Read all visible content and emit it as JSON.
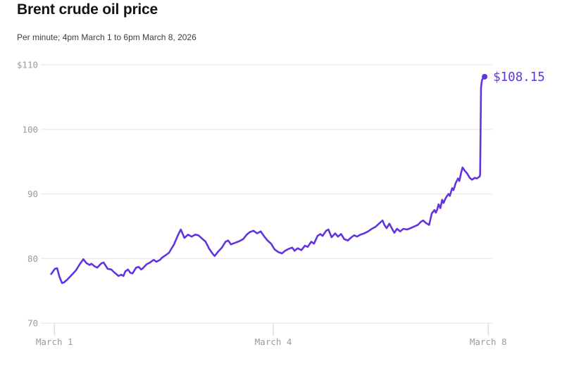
{
  "header": {
    "title": "Brent crude oil price",
    "subtitle": "Per minute; 4pm March 1 to 6pm March 8, 2026"
  },
  "colors": {
    "line": "#6333e0",
    "grid": "#e6e6e6",
    "tick": "#d0d0d0",
    "axis_text": "#9b9b9b",
    "title_text": "#141414",
    "subtitle_text": "#3d3d3d",
    "background": "#ffffff"
  },
  "chart_data": {
    "type": "line",
    "title": "Brent crude oil price",
    "subtitle": "Per minute; 4pm March 1 to 6pm March 8, 2026",
    "series_name": "Brent crude oil price ($/barrel)",
    "grid": "horizontal-only",
    "legend": "none",
    "ylim": [
      70,
      110
    ],
    "y_ticks": [
      {
        "value": 110,
        "label": "$110"
      },
      {
        "value": 100,
        "label": "100"
      },
      {
        "value": 90,
        "label": "90"
      },
      {
        "value": 80,
        "label": "80"
      },
      {
        "value": 70,
        "label": "70"
      }
    ],
    "x_ticks": [
      {
        "pos": 3.0,
        "label": "March 1"
      },
      {
        "pos": 51.5,
        "label": "March 4"
      },
      {
        "pos": 99.1,
        "label": "March 8"
      }
    ],
    "end_value": 108.15,
    "end_label": "$108.15",
    "points": [
      [
        2.3,
        77.6
      ],
      [
        3.1,
        78.4
      ],
      [
        3.6,
        78.5
      ],
      [
        4.1,
        77.2
      ],
      [
        4.7,
        76.2
      ],
      [
        5.1,
        76.3
      ],
      [
        5.8,
        76.7
      ],
      [
        6.9,
        77.5
      ],
      [
        7.8,
        78.2
      ],
      [
        8.6,
        79.1
      ],
      [
        9.4,
        79.9
      ],
      [
        10.1,
        79.3
      ],
      [
        10.8,
        79.0
      ],
      [
        11.2,
        79.2
      ],
      [
        11.9,
        78.8
      ],
      [
        12.5,
        78.6
      ],
      [
        13.3,
        79.2
      ],
      [
        13.9,
        79.4
      ],
      [
        14.8,
        78.4
      ],
      [
        15.6,
        78.3
      ],
      [
        16.2,
        77.9
      ],
      [
        17.2,
        77.3
      ],
      [
        17.8,
        77.5
      ],
      [
        18.3,
        77.3
      ],
      [
        18.7,
        78.0
      ],
      [
        19.3,
        78.3
      ],
      [
        19.8,
        77.8
      ],
      [
        20.3,
        77.7
      ],
      [
        21.1,
        78.6
      ],
      [
        21.7,
        78.7
      ],
      [
        22.2,
        78.3
      ],
      [
        22.6,
        78.5
      ],
      [
        23.4,
        79.1
      ],
      [
        24.2,
        79.4
      ],
      [
        25.0,
        79.8
      ],
      [
        25.6,
        79.5
      ],
      [
        26.4,
        79.8
      ],
      [
        26.8,
        80.1
      ],
      [
        27.6,
        80.5
      ],
      [
        28.4,
        80.9
      ],
      [
        29.5,
        82.2
      ],
      [
        30.3,
        83.5
      ],
      [
        31.0,
        84.5
      ],
      [
        31.8,
        83.2
      ],
      [
        32.6,
        83.7
      ],
      [
        33.4,
        83.4
      ],
      [
        34.2,
        83.7
      ],
      [
        34.9,
        83.6
      ],
      [
        35.7,
        83.1
      ],
      [
        36.5,
        82.6
      ],
      [
        37.3,
        81.5
      ],
      [
        38.1,
        80.7
      ],
      [
        38.5,
        80.4
      ],
      [
        39.3,
        81.1
      ],
      [
        40.1,
        81.7
      ],
      [
        40.9,
        82.6
      ],
      [
        41.5,
        82.8
      ],
      [
        42.1,
        82.2
      ],
      [
        42.9,
        82.4
      ],
      [
        44.0,
        82.7
      ],
      [
        44.8,
        83.0
      ],
      [
        45.6,
        83.7
      ],
      [
        46.3,
        84.1
      ],
      [
        47.1,
        84.3
      ],
      [
        47.9,
        83.9
      ],
      [
        48.7,
        84.2
      ],
      [
        49.5,
        83.4
      ],
      [
        50.2,
        82.8
      ],
      [
        51.0,
        82.3
      ],
      [
        51.8,
        81.4
      ],
      [
        52.6,
        81.0
      ],
      [
        53.4,
        80.8
      ],
      [
        54.1,
        81.2
      ],
      [
        54.9,
        81.5
      ],
      [
        55.7,
        81.7
      ],
      [
        56.2,
        81.2
      ],
      [
        56.9,
        81.6
      ],
      [
        57.7,
        81.3
      ],
      [
        58.5,
        82.0
      ],
      [
        59.1,
        81.8
      ],
      [
        59.9,
        82.6
      ],
      [
        60.5,
        82.3
      ],
      [
        61.3,
        83.5
      ],
      [
        61.9,
        83.8
      ],
      [
        62.4,
        83.5
      ],
      [
        63.2,
        84.3
      ],
      [
        63.7,
        84.5
      ],
      [
        64.4,
        83.3
      ],
      [
        65.2,
        83.9
      ],
      [
        65.8,
        83.4
      ],
      [
        66.5,
        83.8
      ],
      [
        67.2,
        83.0
      ],
      [
        68.0,
        82.8
      ],
      [
        68.8,
        83.3
      ],
      [
        69.4,
        83.6
      ],
      [
        70.0,
        83.4
      ],
      [
        70.8,
        83.7
      ],
      [
        71.6,
        83.9
      ],
      [
        72.5,
        84.2
      ],
      [
        73.3,
        84.6
      ],
      [
        74.1,
        84.9
      ],
      [
        74.9,
        85.4
      ],
      [
        75.7,
        85.9
      ],
      [
        76.1,
        85.2
      ],
      [
        76.6,
        84.7
      ],
      [
        77.2,
        85.4
      ],
      [
        77.8,
        84.6
      ],
      [
        78.3,
        84.0
      ],
      [
        78.9,
        84.6
      ],
      [
        79.6,
        84.2
      ],
      [
        80.3,
        84.6
      ],
      [
        81.1,
        84.5
      ],
      [
        81.9,
        84.7
      ],
      [
        82.5,
        84.9
      ],
      [
        83.5,
        85.2
      ],
      [
        84.2,
        85.7
      ],
      [
        84.7,
        85.9
      ],
      [
        85.3,
        85.5
      ],
      [
        86.0,
        85.2
      ],
      [
        86.6,
        87.0
      ],
      [
        87.2,
        87.5
      ],
      [
        87.5,
        87.1
      ],
      [
        87.8,
        87.6
      ],
      [
        88.1,
        88.4
      ],
      [
        88.5,
        87.8
      ],
      [
        88.9,
        89.1
      ],
      [
        89.2,
        88.6
      ],
      [
        89.7,
        89.4
      ],
      [
        90.3,
        90.0
      ],
      [
        90.6,
        89.7
      ],
      [
        91.1,
        90.9
      ],
      [
        91.4,
        90.6
      ],
      [
        91.9,
        91.7
      ],
      [
        92.4,
        92.4
      ],
      [
        92.7,
        92.0
      ],
      [
        93.1,
        93.3
      ],
      [
        93.4,
        94.1
      ],
      [
        93.9,
        93.6
      ],
      [
        94.4,
        93.2
      ],
      [
        95.0,
        92.5
      ],
      [
        95.5,
        92.2
      ],
      [
        96.1,
        92.5
      ],
      [
        96.6,
        92.4
      ],
      [
        97.2,
        92.7
      ],
      [
        97.3,
        93.0
      ],
      [
        97.5,
        106.5
      ],
      [
        97.7,
        107.6
      ],
      [
        98.0,
        108.0
      ],
      [
        98.3,
        108.15
      ]
    ]
  }
}
